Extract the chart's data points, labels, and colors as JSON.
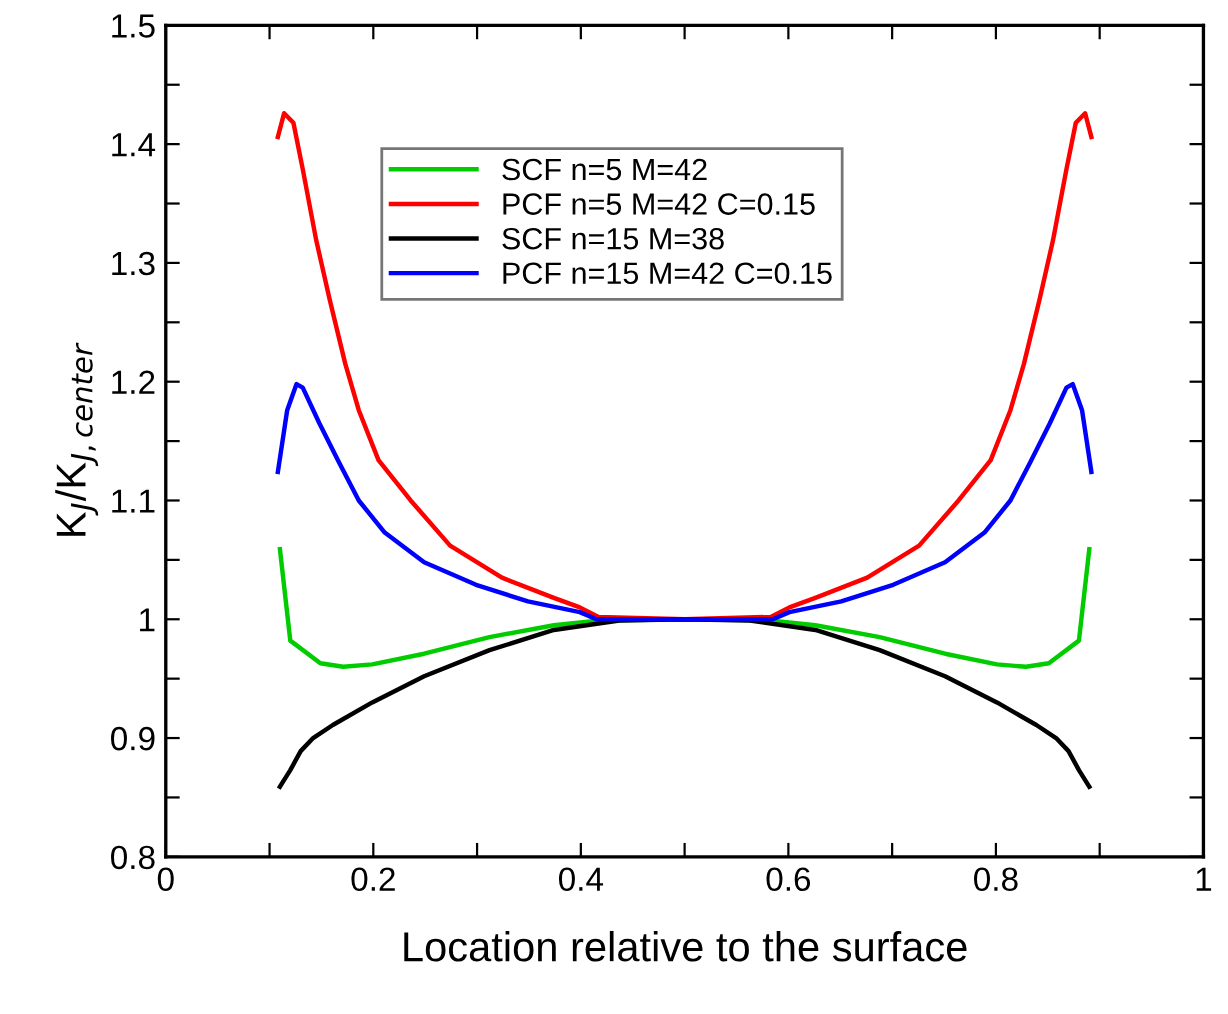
{
  "chart_data": {
    "type": "line",
    "xlabel": "Location relative to the surface",
    "ylabel": "K$_{J}$/K$_{J,center}$",
    "xlim": [
      0,
      1
    ],
    "ylim": [
      0.8,
      1.5
    ],
    "xticks": [
      0,
      {
        "value": 0.1,
        "label": null
      },
      0.2,
      {
        "value": 0.3,
        "label": null
      },
      0.4,
      {
        "value": 0.5,
        "label": null
      },
      0.6,
      {
        "value": 0.7,
        "label": null
      },
      0.8,
      {
        "value": 0.9,
        "label": null
      },
      1
    ],
    "yticks": [
      0.8,
      {
        "value": 0.85,
        "label": null
      },
      0.9,
      {
        "value": 0.95,
        "label": null
      },
      1,
      {
        "value": 1.05,
        "label": null
      },
      1.1,
      {
        "value": 1.15,
        "label": null
      },
      1.2,
      {
        "value": 1.25,
        "label": null
      },
      1.3,
      {
        "value": 1.35,
        "label": null
      },
      1.4,
      {
        "value": 1.45,
        "label": null
      },
      1.5
    ],
    "legend": "top",
    "grid": false,
    "marker": "none",
    "line_style": "solid",
    "series": [
      {
        "name": "SCF n=5 M=42",
        "color": "#00cc00",
        "x": [
          0.11,
          0.12,
          0.149,
          0.171,
          0.199,
          0.249,
          0.312,
          0.374,
          0.418,
          0.5,
          0.582,
          0.626,
          0.688,
          0.751,
          0.801,
          0.829,
          0.851,
          0.88,
          0.89
        ],
        "values": [
          1.059,
          0.982,
          0.963,
          0.96,
          0.962,
          0.971,
          0.985,
          0.995,
          0.999,
          1.0,
          0.999,
          0.995,
          0.985,
          0.971,
          0.962,
          0.96,
          0.963,
          0.982,
          1.059
        ]
      },
      {
        "name": "PCF n=5 M=42 C=0.15",
        "color": "#ff0000",
        "x": [
          0.108,
          0.114,
          0.123,
          0.132,
          0.145,
          0.158,
          0.173,
          0.186,
          0.205,
          0.236,
          0.274,
          0.324,
          0.374,
          0.399,
          0.417,
          0.5,
          0.583,
          0.601,
          0.626,
          0.676,
          0.726,
          0.764,
          0.795,
          0.814,
          0.827,
          0.842,
          0.855,
          0.868,
          0.877,
          0.886,
          0.892
        ],
        "values": [
          1.406,
          1.426,
          1.418,
          1.379,
          1.319,
          1.269,
          1.215,
          1.176,
          1.134,
          1.1,
          1.062,
          1.035,
          1.018,
          1.01,
          1.002,
          1.0,
          1.002,
          1.01,
          1.018,
          1.035,
          1.062,
          1.1,
          1.134,
          1.176,
          1.215,
          1.269,
          1.319,
          1.379,
          1.418,
          1.426,
          1.406
        ]
      },
      {
        "name": "SCF n=15 M=38",
        "color": "#000000",
        "x": [
          0.11,
          0.12,
          0.13,
          0.142,
          0.161,
          0.199,
          0.249,
          0.312,
          0.374,
          0.437,
          0.5,
          0.563,
          0.626,
          0.688,
          0.751,
          0.801,
          0.839,
          0.858,
          0.87,
          0.88,
          0.89
        ],
        "values": [
          0.859,
          0.873,
          0.889,
          0.9,
          0.911,
          0.93,
          0.952,
          0.974,
          0.991,
          0.999,
          1.0,
          0.999,
          0.991,
          0.974,
          0.952,
          0.93,
          0.911,
          0.9,
          0.889,
          0.873,
          0.859
        ]
      },
      {
        "name": "PCF n=15 M=42 C=0.15",
        "color": "#0000ff",
        "x": [
          0.108,
          0.117,
          0.126,
          0.132,
          0.148,
          0.167,
          0.186,
          0.211,
          0.249,
          0.299,
          0.349,
          0.399,
          0.415,
          0.5,
          0.585,
          0.601,
          0.651,
          0.701,
          0.751,
          0.789,
          0.814,
          0.833,
          0.852,
          0.868,
          0.874,
          0.883,
          0.892
        ],
        "values": [
          1.124,
          1.176,
          1.198,
          1.195,
          1.165,
          1.132,
          1.1,
          1.073,
          1.048,
          1.029,
          1.015,
          1.006,
          1.0,
          1.0,
          1.0,
          1.006,
          1.015,
          1.029,
          1.048,
          1.073,
          1.1,
          1.132,
          1.165,
          1.195,
          1.198,
          1.176,
          1.124
        ]
      }
    ]
  }
}
